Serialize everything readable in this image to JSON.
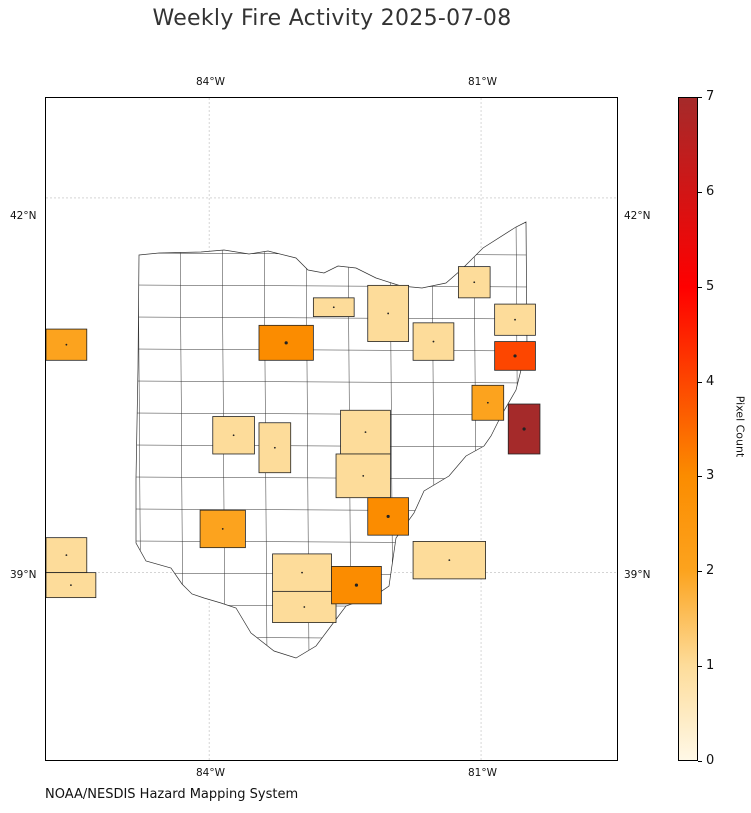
{
  "title": "Weekly Fire Activity 2025-07-08",
  "credit": "NOAA/NESDIS Hazard Mapping System",
  "map": {
    "lon_range": [
      -85.8,
      -79.5
    ],
    "lat_range": [
      37.5,
      42.8
    ],
    "lon_ticks": [
      {
        "value": -84,
        "label": "84°W"
      },
      {
        "value": -81,
        "label": "81°W"
      }
    ],
    "lat_ticks": [
      {
        "value": 42,
        "label": "42°N"
      },
      {
        "value": 39,
        "label": "39°N"
      }
    ],
    "gridlines": true
  },
  "colorbar": {
    "label": "Pixel Count",
    "min": 0,
    "max": 7,
    "ticks": [
      "0",
      "1",
      "2",
      "3",
      "4",
      "5",
      "6",
      "7"
    ],
    "stops": [
      {
        "v": 0,
        "color": "#fff8e6"
      },
      {
        "v": 1,
        "color": "#fddc9a"
      },
      {
        "v": 2,
        "color": "#fca31e"
      },
      {
        "v": 3,
        "color": "#fb8c00"
      },
      {
        "v": 5,
        "color": "#ff0000"
      },
      {
        "v": 7,
        "color": "#a52a2a"
      }
    ]
  },
  "counties": [
    {
      "id": "williams-area",
      "lon0": -85.8,
      "lat0": 40.95,
      "lon1": -85.35,
      "lat1": 40.7,
      "count": 2
    },
    {
      "id": "wood-area",
      "lon0": -83.45,
      "lat0": 40.98,
      "lon1": -82.85,
      "lat1": 40.7,
      "count": 3
    },
    {
      "id": "ottawa-area",
      "lon0": -82.85,
      "lat0": 41.2,
      "lon1": -82.4,
      "lat1": 41.05,
      "count": 1
    },
    {
      "id": "erie-area",
      "lon0": -82.25,
      "lat0": 41.3,
      "lon1": -81.8,
      "lat1": 40.85,
      "count": 1
    },
    {
      "id": "lorain-area",
      "lon0": -81.75,
      "lat0": 41.0,
      "lon1": -81.3,
      "lat1": 40.7,
      "count": 1
    },
    {
      "id": "ashtabula-area",
      "lon0": -81.25,
      "lat0": 41.45,
      "lon1": -80.9,
      "lat1": 41.2,
      "count": 1
    },
    {
      "id": "trumbull-area",
      "lon0": -80.85,
      "lat0": 41.15,
      "lon1": -80.4,
      "lat1": 40.9,
      "count": 1
    },
    {
      "id": "mahoning-area",
      "lon0": -80.85,
      "lat0": 40.85,
      "lon1": -80.4,
      "lat1": 40.62,
      "count": 4
    },
    {
      "id": "stark-area",
      "lon0": -81.1,
      "lat0": 40.5,
      "lon1": -80.75,
      "lat1": 40.22,
      "count": 2
    },
    {
      "id": "jefferson-area",
      "lon0": -80.7,
      "lat0": 40.35,
      "lon1": -80.35,
      "lat1": 39.95,
      "count": 7
    },
    {
      "id": "mercer-area",
      "lon0": -83.96,
      "lat0": 40.25,
      "lon1": -83.5,
      "lat1": 39.95,
      "count": 1
    },
    {
      "id": "logan-area",
      "lon0": -83.45,
      "lat0": 40.2,
      "lon1": -83.1,
      "lat1": 39.8,
      "count": 1
    },
    {
      "id": "knox-area",
      "lon0": -82.55,
      "lat0": 40.3,
      "lon1": -82.0,
      "lat1": 39.95,
      "count": 1
    },
    {
      "id": "licking-area",
      "lon0": -82.6,
      "lat0": 39.95,
      "lon1": -82.0,
      "lat1": 39.6,
      "count": 1
    },
    {
      "id": "muskingum-area",
      "lon0": -82.25,
      "lat0": 39.6,
      "lon1": -81.8,
      "lat1": 39.3,
      "count": 3
    },
    {
      "id": "darke-area",
      "lon0": -84.1,
      "lat0": 39.5,
      "lon1": -83.6,
      "lat1": 39.2,
      "count": 2
    },
    {
      "id": "butler-area",
      "lon0": -85.8,
      "lat0": 39.28,
      "lon1": -85.35,
      "lat1": 39.0,
      "count": 1
    },
    {
      "id": "hamilton-area",
      "lon0": -85.8,
      "lat0": 39.0,
      "lon1": -85.25,
      "lat1": 38.8,
      "count": 1
    },
    {
      "id": "clinton-area",
      "lon0": -83.3,
      "lat0": 39.15,
      "lon1": -82.65,
      "lat1": 38.85,
      "count": 1
    },
    {
      "id": "highland-area",
      "lon0": -83.3,
      "lat0": 38.85,
      "lon1": -82.6,
      "lat1": 38.6,
      "count": 1
    },
    {
      "id": "ross-area",
      "lon0": -82.65,
      "lat0": 39.05,
      "lon1": -82.1,
      "lat1": 38.75,
      "count": 3
    },
    {
      "id": "washington-area",
      "lon0": -81.75,
      "lat0": 39.25,
      "lon1": -80.95,
      "lat1": 38.95,
      "count": 1
    }
  ]
}
